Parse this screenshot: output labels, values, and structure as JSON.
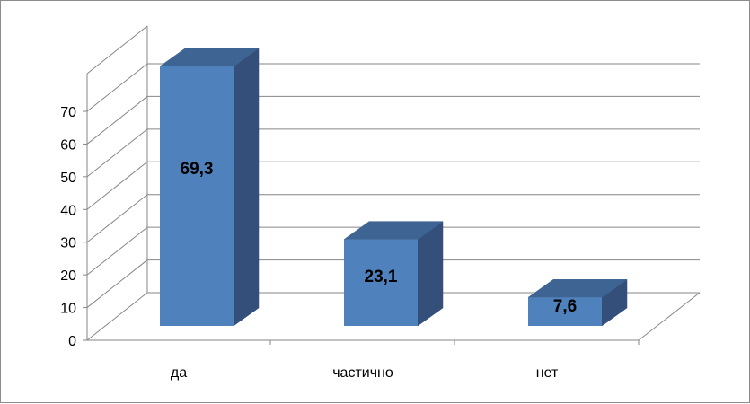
{
  "chart_data": {
    "type": "bar",
    "categories": [
      "да",
      "частично",
      "нет"
    ],
    "values": [
      69.3,
      23.1,
      7.6
    ],
    "data_labels": [
      "69,3",
      "23,1",
      "7,6"
    ],
    "ylim": [
      0,
      70
    ],
    "yticks": [
      "0",
      "10",
      "20",
      "30",
      "40",
      "50",
      "60",
      "70"
    ],
    "grid": true,
    "three_d": true,
    "colors": {
      "front": "#4f81bd",
      "side": "#34507a",
      "top": "#3e6494",
      "grid": "#868686"
    }
  }
}
